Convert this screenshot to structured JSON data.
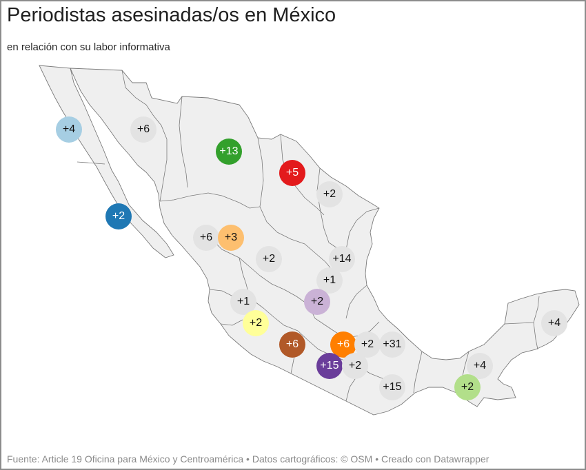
{
  "header": {
    "title": "Periodistas asesinadas/os en México",
    "subtitle": "en relación con su labor informativa"
  },
  "map": {
    "land_color": "#efefef",
    "border_color": "#7a7a7a",
    "bubbles": [
      {
        "label": "+4",
        "color": "#a6cee3",
        "text": "dark-text"
      },
      {
        "label": "+6",
        "color": "#e3e3e3",
        "text": "dark-text"
      },
      {
        "label": "+13",
        "color": "#33a02c",
        "text": "light-text"
      },
      {
        "label": "+5",
        "color": "#e31a1c",
        "text": "light-text"
      },
      {
        "label": "+2",
        "color": "#e3e3e3",
        "text": "dark-text"
      },
      {
        "label": "+2",
        "color": "#1f78b4",
        "text": "light-text"
      },
      {
        "label": "+6",
        "color": "#e3e3e3",
        "text": "dark-text"
      },
      {
        "label": "+3",
        "color": "#fdbf6f",
        "text": "dark-text"
      },
      {
        "label": "+2",
        "color": "#e3e3e3",
        "text": "dark-text"
      },
      {
        "label": "+14",
        "color": "#e3e3e3",
        "text": "dark-text"
      },
      {
        "label": "+1",
        "color": "#e3e3e3",
        "text": "dark-text"
      },
      {
        "label": "+1",
        "color": "#e3e3e3",
        "text": "dark-text"
      },
      {
        "label": "+2",
        "color": "#cab2d6",
        "text": "dark-text"
      },
      {
        "label": "+2",
        "color": "#ffff99",
        "text": "dark-text"
      },
      {
        "label": "+6",
        "color": "#b15928",
        "text": "light-text"
      },
      {
        "label": "+6",
        "color": "#ff7f00",
        "text": "light-text"
      },
      {
        "label": "+2",
        "color": "#e3e3e3",
        "text": "dark-text"
      },
      {
        "label": "+31",
        "color": "#e3e3e3",
        "text": "dark-text"
      },
      {
        "label": "+15",
        "color": "#6a3d9a",
        "text": "light-text"
      },
      {
        "label": "+2",
        "color": "#e3e3e3",
        "text": "dark-text"
      },
      {
        "label": "+4",
        "color": "#e3e3e3",
        "text": "dark-text"
      },
      {
        "label": "+4",
        "color": "#e3e3e3",
        "text": "dark-text"
      },
      {
        "label": "+15",
        "color": "#e3e3e3",
        "text": "dark-text"
      },
      {
        "label": "+2",
        "color": "#b2df8a",
        "text": "dark-text"
      }
    ]
  },
  "footer": {
    "source": "Fuente: Article 19 Oficina para México y Centroamérica • Datos cartográficos: © OSM • Creado con Datawrapper"
  }
}
